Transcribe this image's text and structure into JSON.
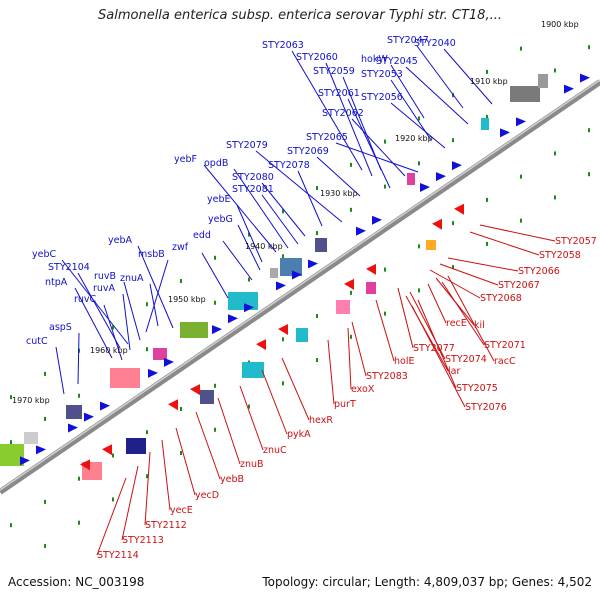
{
  "title": "Salmonella enterica subsp. enterica serovar Typhi str. CT18,...",
  "accession": "Accession: NC_003198",
  "topology": "Topology: circular; Length: 4,809,037 bp; Genes: 4,502",
  "colors": {
    "forward_label": "#1010cc",
    "reverse_label": "#cc1010",
    "backbone": "#888888",
    "tick": "#1a8a1a"
  },
  "kbp_markers": [
    "1900 kbp",
    "1910 kbp",
    "1920 kbp",
    "1930 kbp",
    "1940 kbp",
    "1950 kbp",
    "1960 kbp",
    "1970 kbp"
  ],
  "forward_genes": [
    "STY2063",
    "STY2047",
    "STY2040",
    "STY2060",
    "hokW",
    "STY2059",
    "STY2045",
    "STY2053",
    "STY2061",
    "STY2056",
    "STY2062",
    "STY2065",
    "STY2079",
    "STY2069",
    "yebF",
    "opdB",
    "STY2078",
    "STY2080",
    "STY2081",
    "yebE",
    "yebG",
    "edd",
    "yebC",
    "yebA",
    "STY2104",
    "zwf",
    "ntpA",
    "msbB",
    "ruvB",
    "znuA",
    "ruvA",
    "ruvC",
    "aspS",
    "cutC"
  ],
  "reverse_genes": [
    "STY2057",
    "STY2058",
    "STY2066",
    "STY2067",
    "STY2068",
    "recE",
    "kil",
    "STY2071",
    "racC",
    "STY2077",
    "holE",
    "STY2074",
    "lar",
    "STY2083",
    "exoX",
    "STY2075",
    "purT",
    "STY2076",
    "hexR",
    "pykA",
    "znuC",
    "znuB",
    "yebB",
    "yecD",
    "yecE",
    "STY2112",
    "STY2113",
    "STY2114"
  ]
}
